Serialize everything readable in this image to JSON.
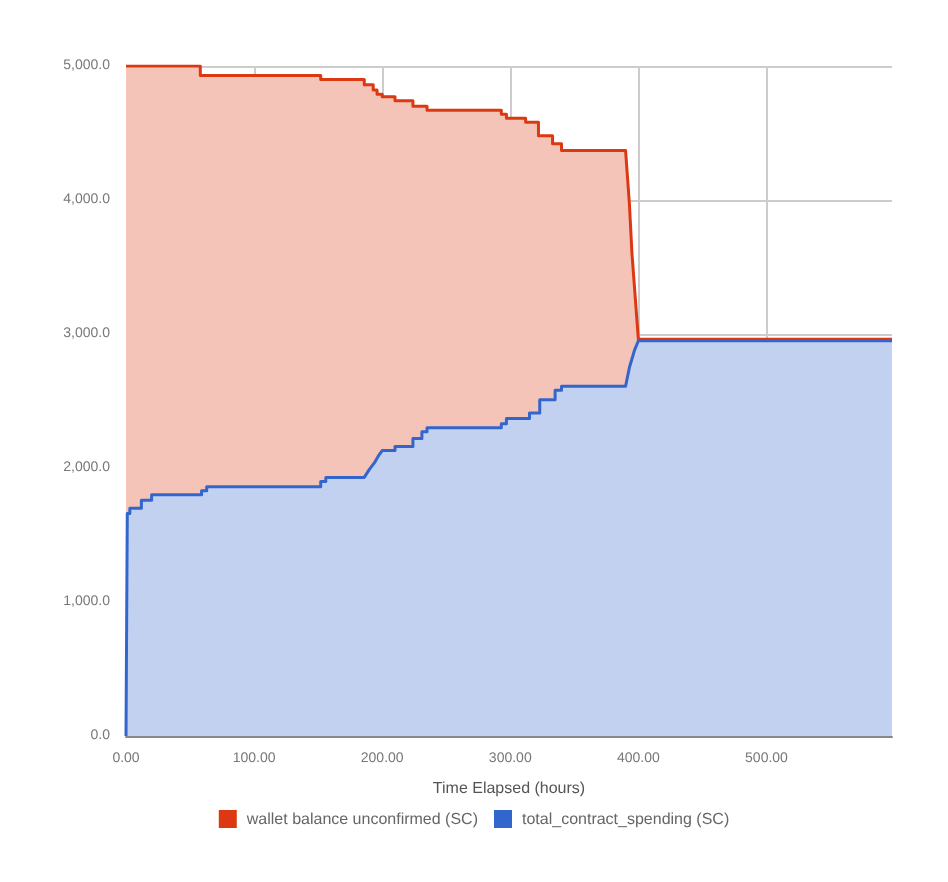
{
  "chart_data": {
    "type": "area",
    "xlabel": "Time Elapsed (hours)",
    "xlim": [
      0,
      598
    ],
    "ylim": [
      0,
      5000
    ],
    "xticks": [
      {
        "value": 0,
        "label": "0.00"
      },
      {
        "value": 100,
        "label": "100.00"
      },
      {
        "value": 200,
        "label": "200.00"
      },
      {
        "value": 300,
        "label": "300.00"
      },
      {
        "value": 400,
        "label": "400.00"
      },
      {
        "value": 500,
        "label": "500.00"
      }
    ],
    "yticks": [
      {
        "value": 0,
        "label": "0.0"
      },
      {
        "value": 1000,
        "label": "1,000.0"
      },
      {
        "value": 2000,
        "label": "2,000.0"
      },
      {
        "value": 3000,
        "label": "3,000.0"
      },
      {
        "value": 4000,
        "label": "4,000.0"
      },
      {
        "value": 5000,
        "label": "5,000.0"
      }
    ],
    "grid": true,
    "legend": "bottom",
    "series": [
      {
        "name": "wallet balance unconfirmed (SC)",
        "color": "#dc3912",
        "x": [
          0,
          58,
          58,
          152,
          152,
          186,
          186,
          193,
          193,
          196,
          196,
          200,
          200,
          210,
          210,
          224,
          224,
          235,
          235,
          293,
          293,
          297,
          297,
          312,
          312,
          322,
          322,
          333,
          333,
          340,
          340,
          390,
          393,
          395,
          400,
          598
        ],
        "values": [
          5000,
          5000,
          4930,
          4930,
          4900,
          4900,
          4860,
          4860,
          4820,
          4820,
          4790,
          4790,
          4770,
          4770,
          4740,
          4740,
          4700,
          4700,
          4670,
          4670,
          4640,
          4640,
          4610,
          4610,
          4580,
          4580,
          4480,
          4480,
          4420,
          4420,
          4370,
          4370,
          3970,
          3600,
          2960,
          2960
        ]
      },
      {
        "name": "total_contract_spending (SC)",
        "color": "#3366cc",
        "x": [
          0,
          1,
          3,
          3,
          12,
          12,
          20,
          20,
          59,
          59,
          63,
          63,
          152,
          152,
          156,
          156,
          186,
          190,
          194,
          197,
          200,
          210,
          210,
          224,
          224,
          231,
          231,
          235,
          235,
          293,
          293,
          297,
          297,
          315,
          315,
          323,
          323,
          335,
          335,
          340,
          340,
          390,
          393,
          397,
          400,
          598
        ],
        "values": [
          0,
          1660,
          1660,
          1700,
          1700,
          1760,
          1760,
          1800,
          1800,
          1830,
          1830,
          1860,
          1860,
          1900,
          1900,
          1930,
          1930,
          1990,
          2040,
          2090,
          2130,
          2130,
          2160,
          2160,
          2220,
          2220,
          2270,
          2270,
          2300,
          2300,
          2330,
          2330,
          2370,
          2370,
          2410,
          2410,
          2510,
          2510,
          2580,
          2580,
          2610,
          2610,
          2750,
          2880,
          2950,
          2950
        ]
      }
    ]
  }
}
